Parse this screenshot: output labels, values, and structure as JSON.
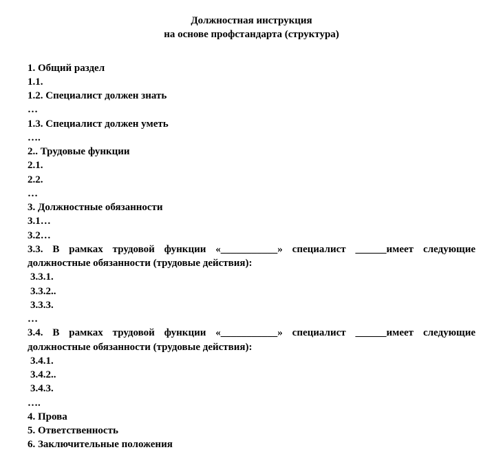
{
  "title": {
    "line1": "Должностная инструкция",
    "line2": "на основе профстандарта (структура)"
  },
  "lines": [
    "1. Общий раздел",
    "1.1.",
    "1.2. Специалист должен знать",
    "…",
    "1.3. Специалист должен уметь",
    "….",
    "2.. Трудовые функции",
    "2.1.",
    "2.2.",
    "…",
    "3. Должностные обязанности",
    "3.1…",
    "3.2…"
  ],
  "para33": {
    "line1": "3.3. В рамках трудовой функции «___________» специалист ______имеет следующие",
    "line2": "должностные обязанности (трудовые действия):"
  },
  "sub33": [
    "3.3.1.",
    "3.3.2..",
    "3.3.3."
  ],
  "ellipsis33": "…",
  "para34": {
    "line1": "3.4. В рамках трудовой функции «___________» специалист ______имеет следующие",
    "line2": "должностные обязанности (трудовые действия):"
  },
  "sub34": [
    "3.4.1.",
    "3.4.2..",
    "3.4.3."
  ],
  "ellipsis34": "….",
  "tail": [
    "4. Прова",
    "5. Ответственность",
    "6. Заключительные положения"
  ],
  "style": {
    "font_family": "Times New Roman",
    "font_size_pt": 12,
    "background_color": "#ffffff",
    "text_color": "#000000",
    "bold": true
  }
}
